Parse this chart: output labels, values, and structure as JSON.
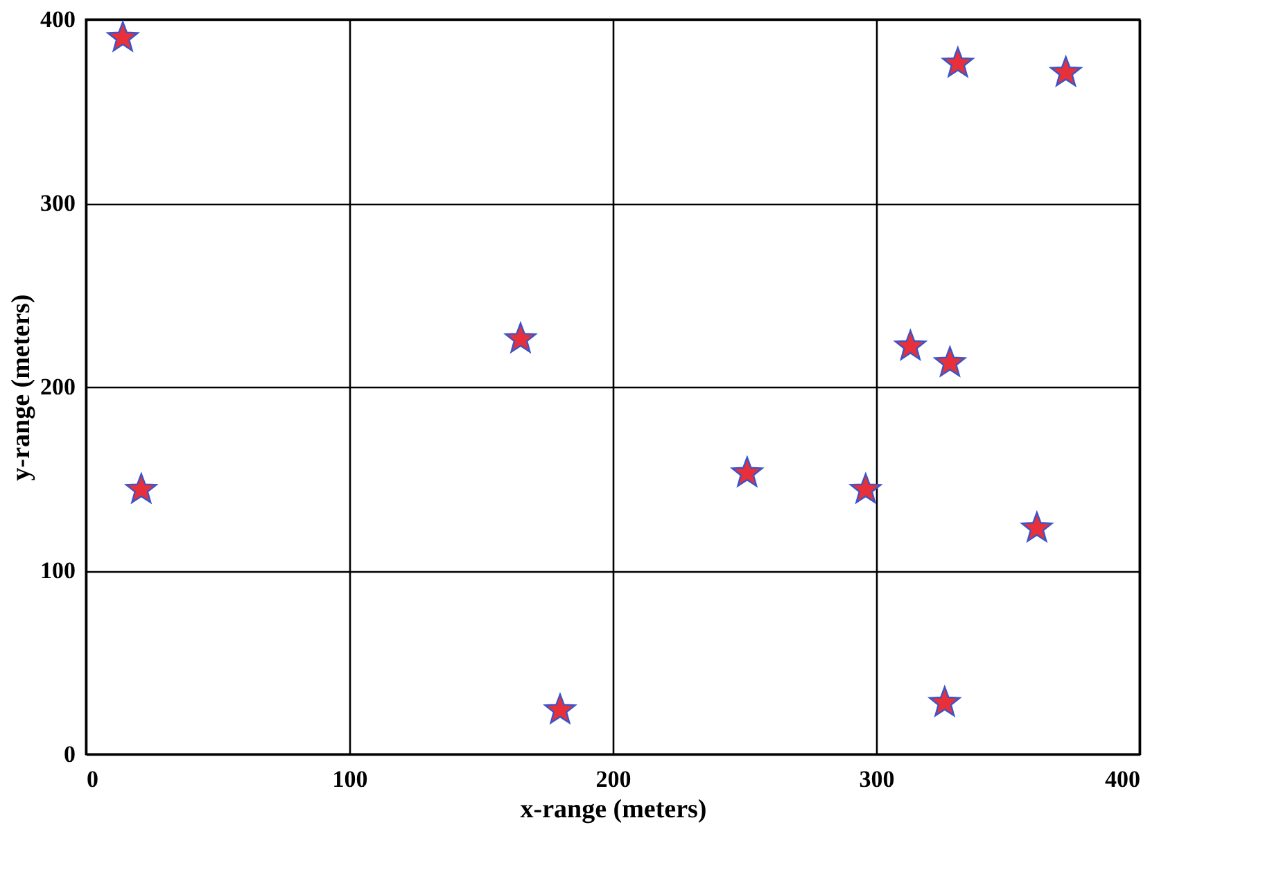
{
  "chart_data": {
    "type": "scatter",
    "xlabel": "x-range (meters)",
    "ylabel": "y-range (meters)",
    "x": [
      14,
      21,
      165,
      180,
      251,
      296,
      313,
      328,
      331,
      372,
      361,
      326
    ],
    "series": [
      {
        "color": "#e8303a",
        "values": [
          390,
          144,
          226,
          24,
          153,
          144,
          222,
          213,
          376,
          371,
          123,
          28
        ]
      }
    ],
    "xlim": [
      0,
      400
    ],
    "ylim": [
      0,
      400
    ],
    "xticks": [
      0,
      100,
      200,
      300,
      400
    ],
    "yticks": [
      0,
      100,
      200,
      300,
      400
    ],
    "grid": true,
    "marker": "star"
  }
}
